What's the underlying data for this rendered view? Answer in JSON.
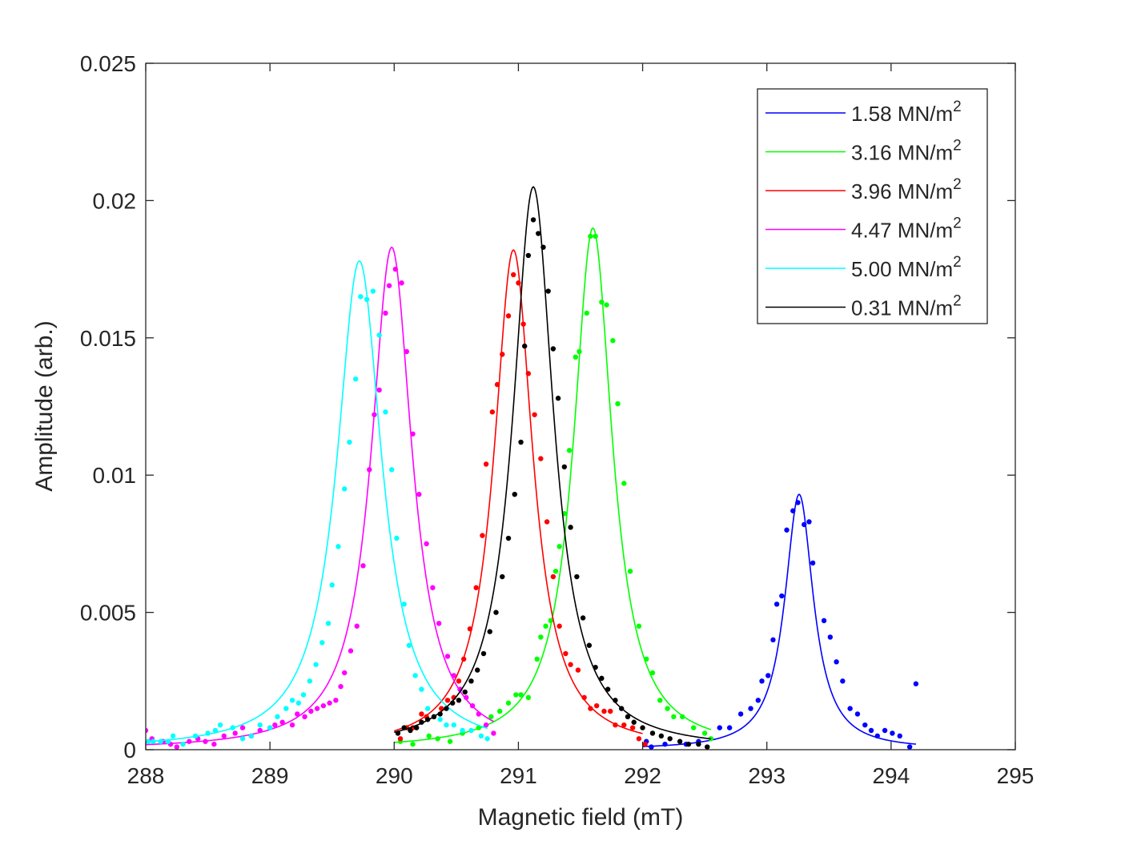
{
  "chart_data": {
    "type": "scatter",
    "title": "",
    "xlabel": "Magnetic field (mT)",
    "ylabel": "Amplitude (arb.)",
    "xlim": [
      288,
      295
    ],
    "ylim": [
      0,
      0.025
    ],
    "xticks": [
      "288",
      "289",
      "290",
      "291",
      "292",
      "293",
      "294",
      "295"
    ],
    "yticks": [
      "0",
      "0.005",
      "0.01",
      "0.015",
      "0.02",
      "0.025"
    ],
    "grid": false,
    "legend_position": "top-right",
    "unit_suffix": "MN/m",
    "unit_superscript": "2",
    "series": [
      {
        "name": "1.58 MN/m2",
        "label_number": "1.58",
        "color": "#0000ff",
        "fit": {
          "center": 293.26,
          "height": 0.0093,
          "hwhm": 0.14,
          "x_start": 292.0,
          "x_end": 294.2
        },
        "points": [
          [
            292.03,
            0.0003
          ],
          [
            292.07,
            0.0001
          ],
          [
            292.18,
            0.0002
          ],
          [
            292.35,
            0.0002
          ],
          [
            292.45,
            0.0003
          ],
          [
            292.62,
            0.0008
          ],
          [
            292.7,
            0.0008
          ],
          [
            292.79,
            0.0013
          ],
          [
            292.87,
            0.0015
          ],
          [
            292.93,
            0.0018
          ],
          [
            292.96,
            0.0025
          ],
          [
            293.01,
            0.0027
          ],
          [
            293.05,
            0.004
          ],
          [
            293.08,
            0.0053
          ],
          [
            293.12,
            0.0056
          ],
          [
            293.16,
            0.008
          ],
          [
            293.21,
            0.0087
          ],
          [
            293.25,
            0.009
          ],
          [
            293.3,
            0.0082
          ],
          [
            293.34,
            0.0083
          ],
          [
            293.37,
            0.0068
          ],
          [
            293.46,
            0.0047
          ],
          [
            293.51,
            0.0041
          ],
          [
            293.56,
            0.0032
          ],
          [
            293.61,
            0.0025
          ],
          [
            293.67,
            0.0015
          ],
          [
            293.73,
            0.0013
          ],
          [
            293.79,
            0.0009
          ],
          [
            293.84,
            0.0007
          ],
          [
            293.89,
            0.0005
          ],
          [
            293.95,
            0.0007
          ],
          [
            294.01,
            0.0006
          ],
          [
            294.07,
            0.0005
          ],
          [
            294.15,
            0.0001
          ],
          [
            294.2,
            0.0024
          ]
        ]
      },
      {
        "name": "3.16 MN/m2",
        "label_number": "3.16",
        "color": "#00ff00",
        "fit": {
          "center": 291.6,
          "height": 0.019,
          "hwhm": 0.19,
          "x_start": 290.0,
          "x_end": 292.55
        },
        "points": [
          [
            290.05,
            0.0003
          ],
          [
            290.15,
            0.0002
          ],
          [
            290.28,
            0.0005
          ],
          [
            290.35,
            0.0004
          ],
          [
            290.45,
            0.0003
          ],
          [
            290.55,
            0.0006
          ],
          [
            290.68,
            0.0008
          ],
          [
            290.78,
            0.0012
          ],
          [
            290.85,
            0.0014
          ],
          [
            290.92,
            0.0017
          ],
          [
            290.98,
            0.002
          ],
          [
            291.02,
            0.002
          ],
          [
            291.08,
            0.0019
          ],
          [
            291.15,
            0.0033
          ],
          [
            291.18,
            0.0041
          ],
          [
            291.22,
            0.0045
          ],
          [
            291.26,
            0.0047
          ],
          [
            291.3,
            0.0065
          ],
          [
            291.33,
            0.0074
          ],
          [
            291.37,
            0.0086
          ],
          [
            291.41,
            0.0109
          ],
          [
            291.46,
            0.0143
          ],
          [
            291.49,
            0.0145
          ],
          [
            291.55,
            0.0159
          ],
          [
            291.58,
            0.0187
          ],
          [
            291.62,
            0.0187
          ],
          [
            291.67,
            0.0163
          ],
          [
            291.71,
            0.0162
          ],
          [
            291.76,
            0.0149
          ],
          [
            291.8,
            0.0126
          ],
          [
            291.85,
            0.0097
          ],
          [
            291.9,
            0.0065
          ],
          [
            291.97,
            0.0045
          ],
          [
            292.03,
            0.0033
          ],
          [
            292.08,
            0.0028
          ],
          [
            292.14,
            0.0018
          ],
          [
            292.2,
            0.0015
          ],
          [
            292.25,
            0.0012
          ],
          [
            292.32,
            0.0012
          ],
          [
            292.41,
            0.0008
          ],
          [
            292.5,
            0.0006
          ],
          [
            292.55,
            0.0004
          ]
        ]
      },
      {
        "name": "3.96 MN/m2",
        "label_number": "3.96",
        "color": "#ff0000",
        "fit": {
          "center": 290.96,
          "height": 0.0182,
          "hwhm": 0.19,
          "x_start": 290.0,
          "x_end": 292.0
        },
        "points": [
          [
            290.05,
            0.0004
          ],
          [
            290.1,
            0.0008
          ],
          [
            290.15,
            0.0008
          ],
          [
            290.22,
            0.0013
          ],
          [
            290.26,
            0.0012
          ],
          [
            290.32,
            0.0012
          ],
          [
            290.38,
            0.0015
          ],
          [
            290.43,
            0.0018
          ],
          [
            290.48,
            0.0019
          ],
          [
            290.52,
            0.0025
          ],
          [
            290.56,
            0.0033
          ],
          [
            290.61,
            0.0044
          ],
          [
            290.66,
            0.0059
          ],
          [
            290.71,
            0.0078
          ],
          [
            290.74,
            0.0104
          ],
          [
            290.79,
            0.0123
          ],
          [
            290.83,
            0.0133
          ],
          [
            290.87,
            0.0144
          ],
          [
            290.92,
            0.0158
          ],
          [
            290.96,
            0.0173
          ],
          [
            291.0,
            0.017
          ],
          [
            291.04,
            0.0155
          ],
          [
            291.08,
            0.0137
          ],
          [
            291.13,
            0.0122
          ],
          [
            291.18,
            0.0106
          ],
          [
            291.23,
            0.0083
          ],
          [
            291.28,
            0.0063
          ],
          [
            291.33,
            0.0045
          ],
          [
            291.38,
            0.0035
          ],
          [
            291.42,
            0.0031
          ],
          [
            291.48,
            0.0029
          ],
          [
            291.53,
            0.0019
          ],
          [
            291.58,
            0.0015
          ],
          [
            291.63,
            0.0016
          ],
          [
            291.69,
            0.0014
          ],
          [
            291.74,
            0.0014
          ],
          [
            291.78,
            0.0009
          ],
          [
            291.85,
            0.0009
          ],
          [
            291.92,
            0.0008
          ],
          [
            291.97,
            0.0004
          ],
          [
            292.02,
            0.0002
          ]
        ]
      },
      {
        "name": "4.47 MN/m2",
        "label_number": "4.47",
        "color": "#ff00ff",
        "fit": {
          "center": 289.98,
          "height": 0.0183,
          "hwhm": 0.2,
          "x_start": 288.0,
          "x_end": 290.8
        },
        "points": [
          [
            288.0,
            0.0007
          ],
          [
            288.05,
            0.0004
          ],
          [
            288.14,
            0.0003
          ],
          [
            288.2,
            0.0002
          ],
          [
            288.25,
            0.0001
          ],
          [
            288.35,
            0.0003
          ],
          [
            288.42,
            0.0004
          ],
          [
            288.48,
            0.0003
          ],
          [
            288.55,
            0.0002
          ],
          [
            288.63,
            0.0005
          ],
          [
            288.72,
            0.0006
          ],
          [
            288.78,
            0.0008
          ],
          [
            288.85,
            0.0005
          ],
          [
            288.92,
            0.0007
          ],
          [
            289.0,
            0.0008
          ],
          [
            289.04,
            0.0009
          ],
          [
            289.1,
            0.001
          ],
          [
            289.18,
            0.0009
          ],
          [
            289.22,
            0.0013
          ],
          [
            289.28,
            0.0012
          ],
          [
            289.33,
            0.0014
          ],
          [
            289.38,
            0.0015
          ],
          [
            289.43,
            0.0016
          ],
          [
            289.48,
            0.0017
          ],
          [
            289.53,
            0.0018
          ],
          [
            289.57,
            0.0023
          ],
          [
            289.6,
            0.0028
          ],
          [
            289.65,
            0.0036
          ],
          [
            289.7,
            0.0045
          ],
          [
            289.75,
            0.0067
          ],
          [
            289.8,
            0.0102
          ],
          [
            289.84,
            0.0122
          ],
          [
            289.88,
            0.0131
          ],
          [
            289.93,
            0.0159
          ],
          [
            289.96,
            0.0169
          ],
          [
            290.01,
            0.0175
          ],
          [
            290.06,
            0.017
          ],
          [
            290.1,
            0.0145
          ],
          [
            290.15,
            0.0115
          ],
          [
            290.2,
            0.0093
          ],
          [
            290.26,
            0.0075
          ],
          [
            290.31,
            0.0059
          ],
          [
            290.36,
            0.0046
          ],
          [
            290.43,
            0.0034
          ],
          [
            290.48,
            0.0027
          ],
          [
            290.53,
            0.0022
          ],
          [
            290.58,
            0.0019
          ],
          [
            290.63,
            0.0016
          ],
          [
            290.68,
            0.0013
          ],
          [
            290.74,
            0.0009
          ],
          [
            290.8,
            0.0006
          ]
        ]
      },
      {
        "name": "5.00 MN/m2",
        "label_number": "5.00",
        "color": "#00ffff",
        "fit": {
          "center": 289.72,
          "height": 0.0178,
          "hwhm": 0.22,
          "x_start": 288.0,
          "x_end": 290.75
        },
        "points": [
          [
            288.02,
            0.0003
          ],
          [
            288.06,
            0.0003
          ],
          [
            288.12,
            0.0003
          ],
          [
            288.18,
            0.0003
          ],
          [
            288.22,
            0.0005
          ],
          [
            288.3,
            0.0002
          ],
          [
            288.4,
            0.0005
          ],
          [
            288.5,
            0.0006
          ],
          [
            288.56,
            0.0007
          ],
          [
            288.6,
            0.0009
          ],
          [
            288.7,
            0.0008
          ],
          [
            288.78,
            0.0004
          ],
          [
            288.85,
            0.0005
          ],
          [
            288.92,
            0.0009
          ],
          [
            289.0,
            0.0008
          ],
          [
            289.06,
            0.0012
          ],
          [
            289.13,
            0.0015
          ],
          [
            289.18,
            0.0018
          ],
          [
            289.23,
            0.0017
          ],
          [
            289.27,
            0.002
          ],
          [
            289.32,
            0.0025
          ],
          [
            289.37,
            0.0031
          ],
          [
            289.42,
            0.0039
          ],
          [
            289.47,
            0.0046
          ],
          [
            289.5,
            0.006
          ],
          [
            289.55,
            0.0074
          ],
          [
            289.6,
            0.0095
          ],
          [
            289.64,
            0.0112
          ],
          [
            289.69,
            0.0135
          ],
          [
            289.73,
            0.0165
          ],
          [
            289.78,
            0.0164
          ],
          [
            289.83,
            0.0167
          ],
          [
            289.88,
            0.0151
          ],
          [
            289.93,
            0.0123
          ],
          [
            289.98,
            0.0102
          ],
          [
            290.02,
            0.0077
          ],
          [
            290.08,
            0.0053
          ],
          [
            290.12,
            0.0038
          ],
          [
            290.17,
            0.0027
          ],
          [
            290.22,
            0.0022
          ],
          [
            290.27,
            0.0015
          ],
          [
            290.32,
            0.0012
          ],
          [
            290.37,
            0.0011
          ],
          [
            290.42,
            0.0009
          ],
          [
            290.48,
            0.0009
          ],
          [
            290.55,
            0.0007
          ],
          [
            290.62,
            0.0007
          ],
          [
            290.7,
            0.0005
          ],
          [
            290.75,
            0.0004
          ]
        ]
      },
      {
        "name": "0.31 MN/m2",
        "label_number": "0.31",
        "color": "#000000",
        "fit": {
          "center": 291.12,
          "height": 0.0205,
          "hwhm": 0.2,
          "x_start": 290.0,
          "x_end": 292.55
        },
        "points": [
          [
            290.03,
            0.0006
          ],
          [
            290.08,
            0.0008
          ],
          [
            290.13,
            0.0007
          ],
          [
            290.18,
            0.0008
          ],
          [
            290.22,
            0.001
          ],
          [
            290.27,
            0.0011
          ],
          [
            290.32,
            0.0012
          ],
          [
            290.37,
            0.0013
          ],
          [
            290.42,
            0.0015
          ],
          [
            290.47,
            0.0017
          ],
          [
            290.52,
            0.0018
          ],
          [
            290.57,
            0.0021
          ],
          [
            290.62,
            0.0025
          ],
          [
            290.67,
            0.0029
          ],
          [
            290.72,
            0.0035
          ],
          [
            290.77,
            0.0043
          ],
          [
            290.82,
            0.005
          ],
          [
            290.87,
            0.0063
          ],
          [
            290.92,
            0.0077
          ],
          [
            290.97,
            0.0093
          ],
          [
            291.02,
            0.0112
          ],
          [
            291.05,
            0.0147
          ],
          [
            291.08,
            0.018
          ],
          [
            291.12,
            0.0193
          ],
          [
            291.16,
            0.0188
          ],
          [
            291.2,
            0.0183
          ],
          [
            291.24,
            0.0167
          ],
          [
            291.28,
            0.0146
          ],
          [
            291.32,
            0.0128
          ],
          [
            291.37,
            0.0103
          ],
          [
            291.42,
            0.0081
          ],
          [
            291.47,
            0.0063
          ],
          [
            291.52,
            0.0048
          ],
          [
            291.57,
            0.0038
          ],
          [
            291.62,
            0.003
          ],
          [
            291.67,
            0.0026
          ],
          [
            291.72,
            0.0022
          ],
          [
            291.78,
            0.0018
          ],
          [
            291.83,
            0.0015
          ],
          [
            291.88,
            0.0012
          ],
          [
            291.93,
            0.001
          ],
          [
            292.0,
            0.0008
          ],
          [
            292.08,
            0.0006
          ],
          [
            292.15,
            0.0005
          ],
          [
            292.22,
            0.0004
          ],
          [
            292.3,
            0.0003
          ],
          [
            292.37,
            0.0002
          ],
          [
            292.45,
            0.0002
          ],
          [
            292.52,
            0.0001
          ]
        ]
      }
    ]
  }
}
